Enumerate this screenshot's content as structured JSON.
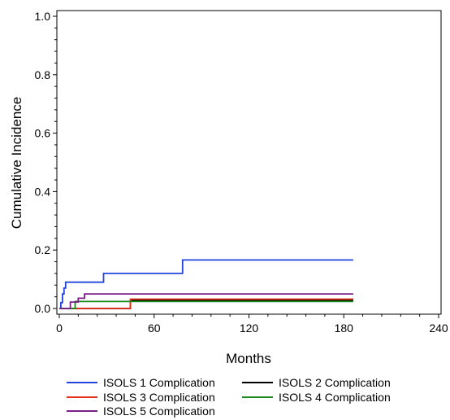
{
  "chart_data": {
    "type": "line",
    "step": true,
    "xlabel": "Months",
    "ylabel": "Cumulative Incidence",
    "xlim": [
      0,
      240
    ],
    "ylim": [
      0,
      1.0
    ],
    "xticks": [
      "0",
      "60",
      "120",
      "180",
      "240"
    ],
    "yticks": [
      "0.0",
      "0.2",
      "0.4",
      "0.6",
      "0.8",
      "1.0"
    ],
    "grid": false,
    "legend_position": "bottom",
    "series": [
      {
        "name": "ISOLS 1 Complication",
        "color": "#2244dd",
        "x": [
          0,
          1,
          2,
          3,
          4,
          28,
          78,
          186
        ],
        "y": [
          0,
          0.02,
          0.05,
          0.07,
          0.09,
          0.12,
          0.166,
          0.166
        ]
      },
      {
        "name": "ISOLS 2 Complication",
        "color": "#000000",
        "x": [
          0,
          45,
          186
        ],
        "y": [
          0,
          0.028,
          0.028
        ]
      },
      {
        "name": "ISOLS 3 Complication",
        "color": "#e62e1a",
        "x": [
          0,
          45,
          186
        ],
        "y": [
          0,
          0.032,
          0.032
        ]
      },
      {
        "name": "ISOLS 4 Complication",
        "color": "#1a8a1a",
        "x": [
          0,
          10,
          186
        ],
        "y": [
          0,
          0.024,
          0.024
        ]
      },
      {
        "name": "ISOLS 5 Complication",
        "color": "#7a1f8a",
        "x": [
          0,
          7,
          12,
          16,
          186
        ],
        "y": [
          0,
          0.022,
          0.035,
          0.05,
          0.05
        ]
      }
    ]
  }
}
